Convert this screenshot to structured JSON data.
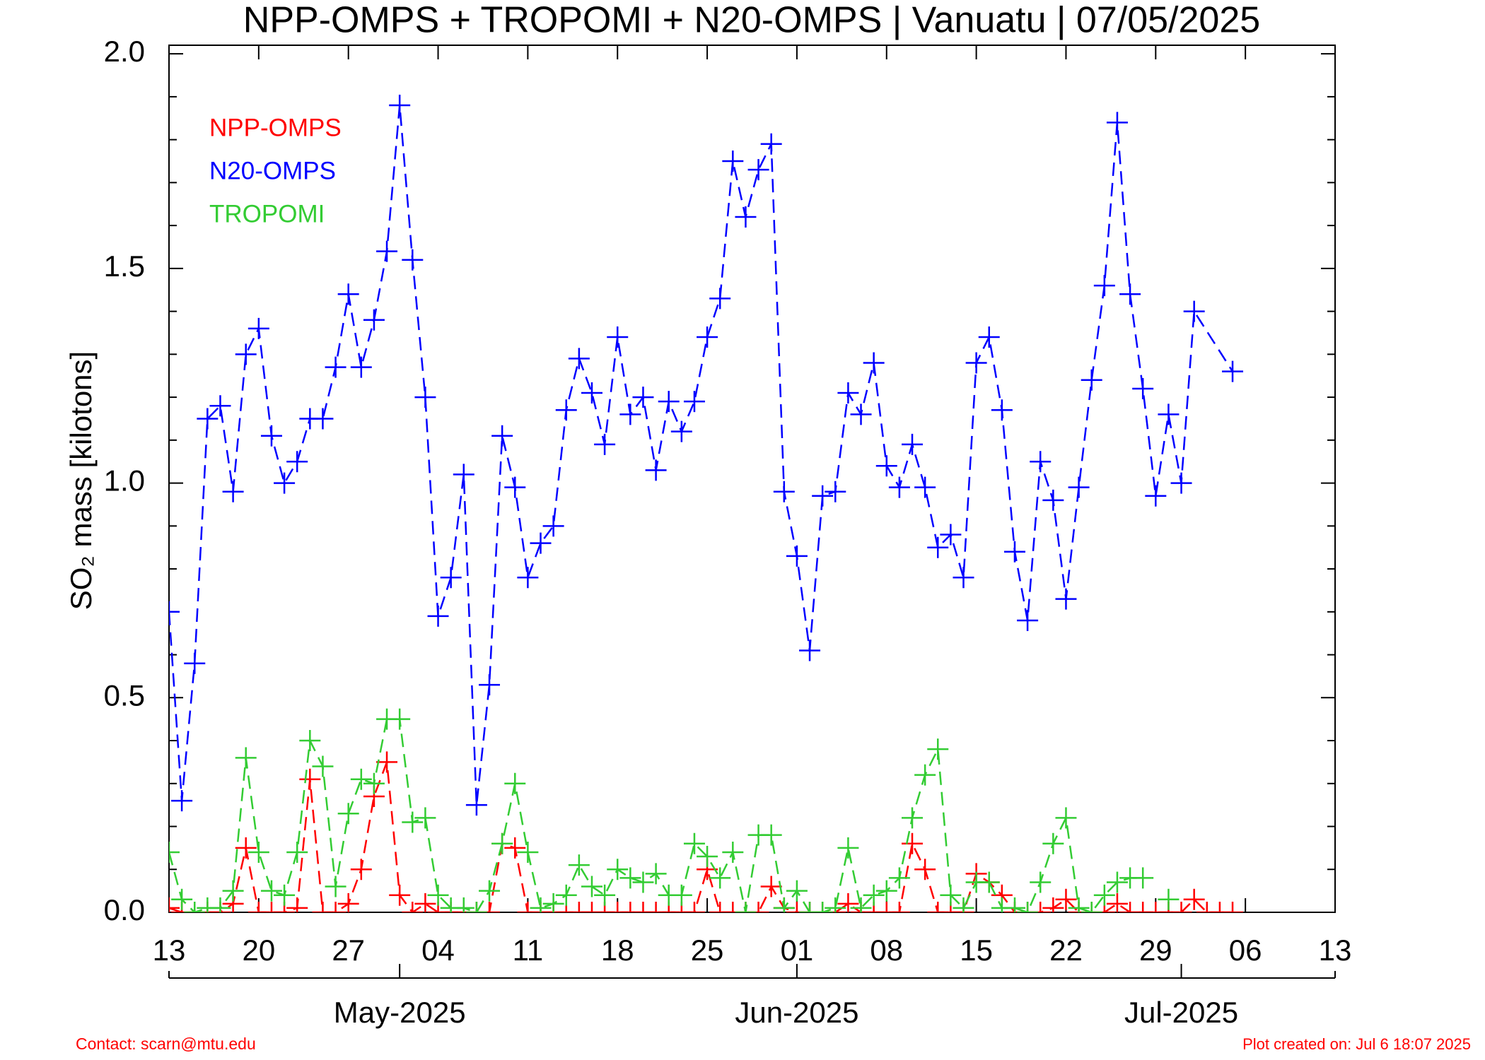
{
  "chart_data": {
    "type": "line",
    "title": "NPP-OMPS + TROPOMI + N20-OMPS | Vanuatu | 07/05/2025",
    "y_label": "SO₂ mass [kilotons]",
    "contact": "Contact: scarn@mtu.edu",
    "created": "Plot created on: Jul  6 18:07 2025",
    "xlim": [
      "2025-04-13",
      "2025-07-13"
    ],
    "xticks": [
      {
        "value": "2025-04-13",
        "label": "13"
      },
      {
        "value": "2025-04-20",
        "label": "20"
      },
      {
        "value": "2025-04-27",
        "label": "27"
      },
      {
        "value": "2025-05-04",
        "label": "04"
      },
      {
        "value": "2025-05-11",
        "label": "11"
      },
      {
        "value": "2025-05-18",
        "label": "18"
      },
      {
        "value": "2025-05-25",
        "label": "25"
      },
      {
        "value": "2025-06-01",
        "label": "01"
      },
      {
        "value": "2025-06-08",
        "label": "08"
      },
      {
        "value": "2025-06-15",
        "label": "15"
      },
      {
        "value": "2025-06-22",
        "label": "22"
      },
      {
        "value": "2025-06-29",
        "label": "29"
      },
      {
        "value": "2025-07-06",
        "label": "06"
      },
      {
        "value": "2025-07-13",
        "label": "13"
      }
    ],
    "month_ticks": [
      {
        "value": "2025-05-01",
        "label": "May-2025"
      },
      {
        "value": "2025-06-01",
        "label": "Jun-2025"
      },
      {
        "value": "2025-07-01",
        "label": "Jul-2025"
      }
    ],
    "ylim": [
      0,
      2.02
    ],
    "yticks": [
      {
        "value": 0,
        "label": "0.0"
      },
      {
        "value": 0.5,
        "label": "0.5"
      },
      {
        "value": 1,
        "label": "1.0"
      },
      {
        "value": 1.5,
        "label": "1.5"
      },
      {
        "value": 2,
        "label": "2.0"
      }
    ],
    "yminorticks": [
      0.1,
      0.2,
      0.3,
      0.4,
      0.6,
      0.7,
      0.8,
      0.9,
      1.1,
      1.2,
      1.3,
      1.4,
      1.6,
      1.7,
      1.8,
      1.9
    ],
    "grid": false,
    "legend": "upper left",
    "series": [
      {
        "name": "NPP-OMPS",
        "color": "#ff0000",
        "x": [
          "2025-04-13",
          "2025-04-14",
          "2025-04-15",
          "2025-04-16",
          "2025-04-17",
          "2025-04-18",
          "2025-04-19",
          "2025-04-20",
          "2025-04-21",
          "2025-04-22",
          "2025-04-23",
          "2025-04-24",
          "2025-04-25",
          "2025-04-26",
          "2025-04-27",
          "2025-04-28",
          "2025-04-29",
          "2025-04-30",
          "2025-05-01",
          "2025-05-02",
          "2025-05-03",
          "2025-05-04",
          "2025-05-05",
          "2025-05-06",
          "2025-05-07",
          "2025-05-08",
          "2025-05-09",
          "2025-05-10",
          "2025-05-11",
          "2025-05-12",
          "2025-05-13",
          "2025-05-14",
          "2025-05-15",
          "2025-05-16",
          "2025-05-17",
          "2025-05-18",
          "2025-05-19",
          "2025-05-20",
          "2025-05-21",
          "2025-05-22",
          "2025-05-23",
          "2025-05-24",
          "2025-05-25",
          "2025-05-26",
          "2025-05-27",
          "2025-05-28",
          "2025-05-29",
          "2025-05-30",
          "2025-05-31",
          "2025-06-01",
          "2025-06-02",
          "2025-06-03",
          "2025-06-04",
          "2025-06-05",
          "2025-06-06",
          "2025-06-07",
          "2025-06-08",
          "2025-06-09",
          "2025-06-10",
          "2025-06-11",
          "2025-06-12",
          "2025-06-13",
          "2025-06-14",
          "2025-06-15",
          "2025-06-16",
          "2025-06-17",
          "2025-06-18",
          "2025-06-19",
          "2025-06-20",
          "2025-06-21",
          "2025-06-22",
          "2025-06-23",
          "2025-06-24",
          "2025-06-25",
          "2025-06-26",
          "2025-06-27",
          "2025-06-28",
          "2025-06-29",
          "2025-06-30",
          "2025-07-01",
          "2025-07-02",
          "2025-07-03",
          "2025-07-04",
          "2025-07-05"
        ],
        "values": [
          0.01,
          0,
          0,
          0,
          0,
          0.02,
          0.15,
          0,
          0,
          0,
          0.01,
          0.31,
          0,
          0,
          0.02,
          0.1,
          0.27,
          0.35,
          0.04,
          0,
          0.02,
          0,
          0,
          0,
          0,
          0,
          0.16,
          0.15,
          0,
          0,
          0,
          0,
          0,
          0,
          0,
          0,
          0,
          0,
          0,
          0,
          0,
          0,
          0.1,
          0,
          0,
          0,
          0,
          0.06,
          0.01,
          0,
          0,
          0,
          0,
          0.02,
          0,
          0,
          0,
          0,
          0.16,
          0.1,
          0,
          0,
          0,
          0.09,
          0.07,
          0.04,
          0,
          0,
          0,
          0.01,
          0.03,
          0,
          0,
          0,
          0.02,
          0,
          0,
          0,
          0,
          0,
          0.03,
          0,
          0,
          0
        ]
      },
      {
        "name": "N20-OMPS",
        "color": "#0000ff",
        "x": [
          "2025-04-13",
          "2025-04-14",
          "2025-04-15",
          "2025-04-16",
          "2025-04-17",
          "2025-04-18",
          "2025-04-19",
          "2025-04-20",
          "2025-04-21",
          "2025-04-22",
          "2025-04-23",
          "2025-04-24",
          "2025-04-25",
          "2025-04-26",
          "2025-04-27",
          "2025-04-28",
          "2025-04-29",
          "2025-04-30",
          "2025-05-01",
          "2025-05-02",
          "2025-05-03",
          "2025-05-04",
          "2025-05-05",
          "2025-05-06",
          "2025-05-07",
          "2025-05-08",
          "2025-05-09",
          "2025-05-10",
          "2025-05-11",
          "2025-05-12",
          "2025-05-13",
          "2025-05-14",
          "2025-05-15",
          "2025-05-16",
          "2025-05-17",
          "2025-05-18",
          "2025-05-19",
          "2025-05-20",
          "2025-05-21",
          "2025-05-22",
          "2025-05-23",
          "2025-05-24",
          "2025-05-25",
          "2025-05-26",
          "2025-05-27",
          "2025-05-28",
          "2025-05-29",
          "2025-05-30",
          "2025-05-31",
          "2025-06-01",
          "2025-06-02",
          "2025-06-03",
          "2025-06-04",
          "2025-06-05",
          "2025-06-06",
          "2025-06-07",
          "2025-06-08",
          "2025-06-09",
          "2025-06-10",
          "2025-06-11",
          "2025-06-12",
          "2025-06-13",
          "2025-06-14",
          "2025-06-15",
          "2025-06-16",
          "2025-06-17",
          "2025-06-18",
          "2025-06-19",
          "2025-06-20",
          "2025-06-21",
          "2025-06-22",
          "2025-06-23",
          "2025-06-24",
          "2025-06-25",
          "2025-06-26",
          "2025-06-27",
          "2025-06-28",
          "2025-06-29",
          "2025-06-30",
          "2025-07-01",
          "2025-07-02",
          "2025-07-05"
        ],
        "values": [
          0.7,
          0.26,
          0.58,
          1.15,
          1.18,
          0.98,
          1.3,
          1.36,
          1.11,
          1.0,
          1.05,
          1.15,
          1.15,
          1.27,
          1.44,
          1.27,
          1.38,
          1.54,
          1.88,
          1.52,
          1.2,
          0.69,
          0.78,
          1.02,
          0.25,
          0.53,
          1.11,
          0.99,
          0.78,
          0.86,
          0.9,
          1.17,
          1.29,
          1.21,
          1.09,
          1.34,
          1.16,
          1.2,
          1.03,
          1.19,
          1.12,
          1.19,
          1.34,
          1.43,
          1.75,
          1.62,
          1.73,
          1.79,
          0.98,
          0.83,
          0.61,
          0.97,
          0.98,
          1.21,
          1.16,
          1.28,
          1.04,
          0.99,
          1.09,
          0.99,
          0.85,
          0.88,
          0.78,
          1.28,
          1.34,
          1.17,
          0.84,
          0.68,
          1.05,
          0.96,
          0.73,
          0.99,
          1.24,
          1.46,
          1.84,
          1.44,
          1.22,
          0.97,
          1.16,
          1.0,
          1.4,
          1.26
        ]
      },
      {
        "name": "TROPOMI",
        "color": "#33cc33",
        "x": [
          "2025-04-13",
          "2025-04-14",
          "2025-04-15",
          "2025-04-16",
          "2025-04-17",
          "2025-04-18",
          "2025-04-19",
          "2025-04-20",
          "2025-04-21",
          "2025-04-22",
          "2025-04-23",
          "2025-04-24",
          "2025-04-25",
          "2025-04-26",
          "2025-04-27",
          "2025-04-28",
          "2025-04-29",
          "2025-04-30",
          "2025-05-01",
          "2025-05-02",
          "2025-05-03",
          "2025-05-04",
          "2025-05-05",
          "2025-05-06",
          "2025-05-07",
          "2025-05-08",
          "2025-05-09",
          "2025-05-10",
          "2025-05-11",
          "2025-05-12",
          "2025-05-13",
          "2025-05-14",
          "2025-05-15",
          "2025-05-16",
          "2025-05-17",
          "2025-05-18",
          "2025-05-19",
          "2025-05-20",
          "2025-05-21",
          "2025-05-22",
          "2025-05-23",
          "2025-05-24",
          "2025-05-25",
          "2025-05-26",
          "2025-05-27",
          "2025-05-28",
          "2025-05-29",
          "2025-05-30",
          "2025-05-31",
          "2025-06-01",
          "2025-06-02",
          "2025-06-03",
          "2025-06-04",
          "2025-06-05",
          "2025-06-06",
          "2025-06-07",
          "2025-06-08",
          "2025-06-09",
          "2025-06-10",
          "2025-06-11",
          "2025-06-12",
          "2025-06-13",
          "2025-06-14",
          "2025-06-15",
          "2025-06-16",
          "2025-06-17",
          "2025-06-18",
          "2025-06-19",
          "2025-06-20",
          "2025-06-21",
          "2025-06-22",
          "2025-06-23",
          "2025-06-24",
          "2025-06-25",
          "2025-06-26",
          "2025-06-27",
          "2025-06-28",
          "2025-06-29",
          "2025-06-30"
        ],
        "values": [
          0.14,
          0.03,
          0,
          0.01,
          0.01,
          0.05,
          0.36,
          0.14,
          0.05,
          0.04,
          0.14,
          0.4,
          0.34,
          0.06,
          0.23,
          0.31,
          0.3,
          0.45,
          0.45,
          0.21,
          0.22,
          0.04,
          0.01,
          0.01,
          0,
          0.05,
          0.16,
          0.3,
          0.14,
          0.01,
          0.02,
          0.04,
          0.11,
          0.06,
          0.04,
          0.1,
          0.08,
          0.07,
          0.09,
          0.04,
          0.04,
          0.16,
          0.13,
          0.08,
          0.14,
          0,
          0.18,
          0.18,
          0.01,
          0.05,
          0,
          0,
          0.01,
          0.15,
          0.01,
          0.04,
          0.05,
          0.08,
          0.22,
          0.32,
          0.38,
          0.04,
          0.01,
          0.07,
          0.07,
          0.01,
          0.01,
          0,
          0.07,
          0.16,
          0.22,
          0.01,
          0,
          0.04,
          0.07,
          0.08,
          0.08,
          null,
          0.03
        ]
      }
    ]
  }
}
